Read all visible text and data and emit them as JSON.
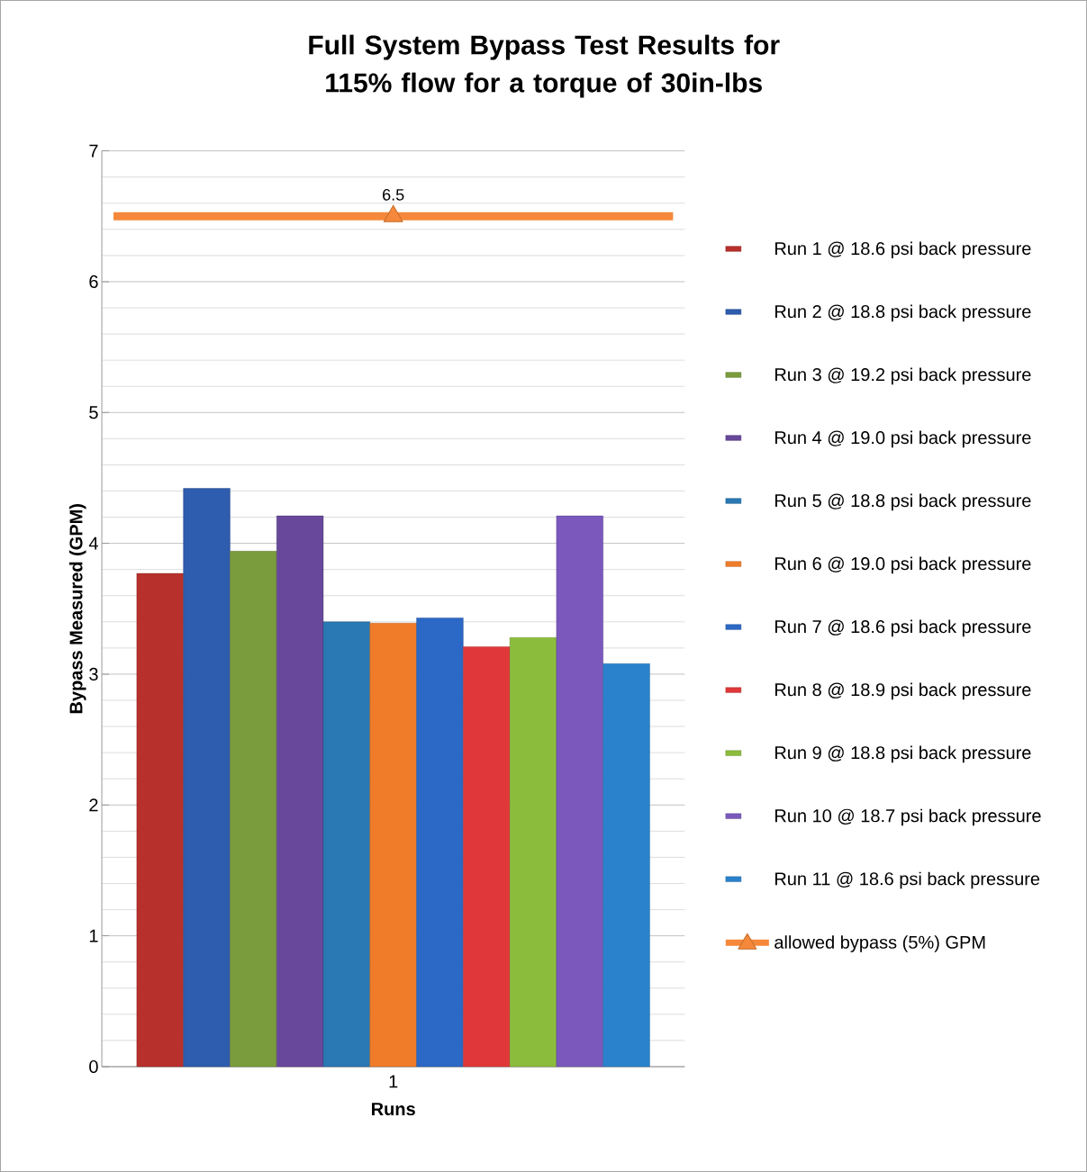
{
  "chart_data": {
    "type": "bar",
    "title": "Full System Bypass Test Results for 115% flow for a torque of 30in-lbs",
    "xlabel": "Runs",
    "ylabel": "Bypass Measured (GPM)",
    "categories": [
      "1"
    ],
    "ylim": [
      0,
      7
    ],
    "yticks": [
      0,
      1,
      2,
      3,
      4,
      5,
      6,
      7
    ],
    "grid": "y",
    "legend": "right",
    "ref_lines": [
      {
        "axis": "y",
        "value": 6.5,
        "color": "#f5883a"
      }
    ],
    "series": [
      {
        "name": "Run 1 @ 18.6 psi back pressure",
        "color": "#b8302c",
        "values": [
          3.77
        ]
      },
      {
        "name": "Run 2 @ 18.8 psi back pressure",
        "color": "#2e5cae",
        "values": [
          4.42
        ]
      },
      {
        "name": "Run 3 @ 19.2 psi back pressure",
        "color": "#7a9c3c",
        "values": [
          3.94
        ]
      },
      {
        "name": "Run 4 @ 19.0 psi back pressure",
        "color": "#68489a",
        "values": [
          4.21
        ]
      },
      {
        "name": "Run 5 @ 18.8 psi back pressure",
        "color": "#2a78b4",
        "values": [
          3.4
        ]
      },
      {
        "name": "Run 6 @ 19.0 psi back pressure",
        "color": "#f07c2a",
        "values": [
          3.39
        ]
      },
      {
        "name": "Run 7 @ 18.6 psi back pressure",
        "color": "#2c68c6",
        "values": [
          3.43
        ]
      },
      {
        "name": "Run 8 @ 18.9 psi back pressure",
        "color": "#e0383a",
        "values": [
          3.21
        ]
      },
      {
        "name": "Run 9 @ 18.8 psi back pressure",
        "color": "#8cbc3c",
        "values": [
          3.28
        ]
      },
      {
        "name": "Run 10 @ 18.7 psi back pressure",
        "color": "#7a58bc",
        "values": [
          4.21
        ]
      },
      {
        "name": "Run 11 @ 18.6 psi back pressure",
        "color": "#2a82cc",
        "values": [
          3.08
        ]
      },
      {
        "name": "allowed bypass (5%) GPM",
        "type": "line",
        "color": "#f5883a",
        "marker": "triangle",
        "values": [
          6.5
        ],
        "value_labels": [
          "6.5"
        ]
      }
    ]
  }
}
